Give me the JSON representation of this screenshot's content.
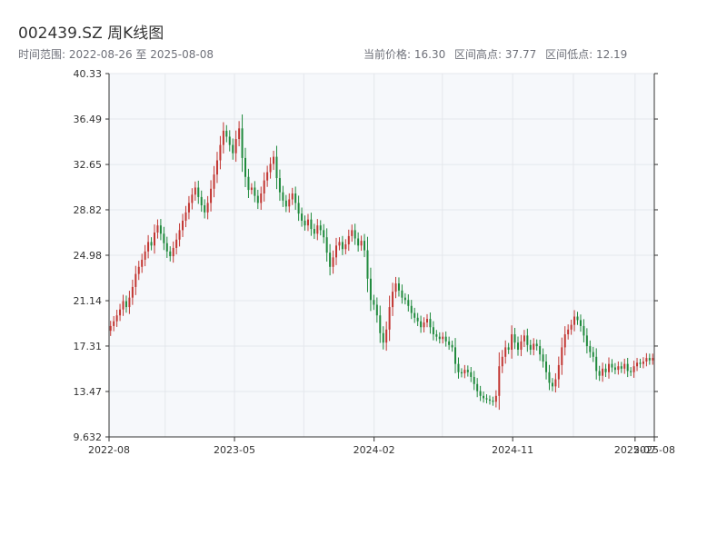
{
  "header": {
    "title": "002439.SZ 周K线图",
    "range_text": "时间范围: 2022-08-26 至 2025-08-08",
    "current_price": "当前价格: 16.30",
    "range_high": "区间高点: 37.77",
    "range_low": "区间低点: 12.19"
  },
  "colors": {
    "up": "#c23531",
    "down": "#1f8a3c",
    "plot_bg": "#f6f8fb",
    "grid": "#e4e7ec",
    "axis": "#333333"
  },
  "chart_data": {
    "type": "candlestick",
    "title": "002439.SZ 周K线图",
    "y_ticks": [
      "9.632",
      "13.47",
      "17.31",
      "21.14",
      "24.98",
      "28.82",
      "32.65",
      "36.49",
      "40.33"
    ],
    "ylim": [
      9.632,
      40.33
    ],
    "x_ticks": [
      {
        "label": "2022-08",
        "date": "2022-08-26"
      },
      {
        "label": "2023-05",
        "date": "2023-05-01"
      },
      {
        "label": "2024-02",
        "date": "2024-02-01"
      },
      {
        "label": "2024-11",
        "date": "2024-11-01"
      },
      {
        "label": "2025-07",
        "date": "2025-07-01"
      },
      {
        "label": "2025-08",
        "date": "2025-08-08"
      }
    ],
    "x_range": [
      "2022-08-26",
      "2025-08-08"
    ],
    "grid": true,
    "closes": [
      19.0,
      19.4,
      19.9,
      20.4,
      21.1,
      20.6,
      21.4,
      22.3,
      23.4,
      24.0,
      24.6,
      25.3,
      26.1,
      25.8,
      26.9,
      27.5,
      26.8,
      26.0,
      25.3,
      24.9,
      25.6,
      26.3,
      27.1,
      27.9,
      28.6,
      29.4,
      30.1,
      30.7,
      29.9,
      29.2,
      28.6,
      29.4,
      30.6,
      31.8,
      33.0,
      34.3,
      35.5,
      35.0,
      34.3,
      33.6,
      34.8,
      35.7,
      33.2,
      31.6,
      30.5,
      30.7,
      30.0,
      29.4,
      30.2,
      31.3,
      32.0,
      32.7,
      33.3,
      31.5,
      30.3,
      29.6,
      29.1,
      29.7,
      30.2,
      29.4,
      28.5,
      27.9,
      27.5,
      28.0,
      27.2,
      26.8,
      27.5,
      27.1,
      26.5,
      25.2,
      24.0,
      24.8,
      25.8,
      26.1,
      25.5,
      25.9,
      26.6,
      27.1,
      26.4,
      25.8,
      26.2,
      25.4,
      23.0,
      21.2,
      20.8,
      19.9,
      18.4,
      17.6,
      18.7,
      20.6,
      21.9,
      22.6,
      22.0,
      21.4,
      21.2,
      20.7,
      20.1,
      19.7,
      19.4,
      18.9,
      19.3,
      19.6,
      18.9,
      18.3,
      18.1,
      17.9,
      18.1,
      17.7,
      17.4,
      17.2,
      15.8,
      15.1,
      15.0,
      15.3,
      15.1,
      14.7,
      14.1,
      13.5,
      13.1,
      12.9,
      12.8,
      12.7,
      12.6,
      13.1,
      15.6,
      16.4,
      17.2,
      17.0,
      18.3,
      17.6,
      17.0,
      17.7,
      18.2,
      17.4,
      17.0,
      17.5,
      17.3,
      16.6,
      16.0,
      15.1,
      14.2,
      13.9,
      14.5,
      15.7,
      17.2,
      18.3,
      18.7,
      19.1,
      19.8,
      19.5,
      19.0,
      18.2,
      17.3,
      16.8,
      16.4,
      15.2,
      14.8,
      15.4,
      15.1,
      15.8,
      15.5,
      15.3,
      15.6,
      15.4,
      15.8,
      15.2,
      15.1,
      15.6,
      15.9,
      15.8,
      16.0,
      16.3,
      16.1,
      16.3
    ]
  }
}
